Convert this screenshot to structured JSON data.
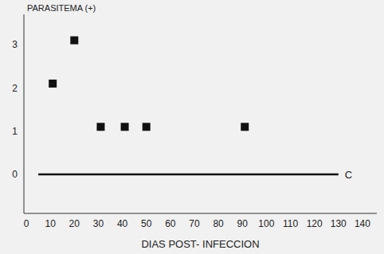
{
  "chart_data": {
    "type": "scatter",
    "x_label": "DIAS POST- INFECCION",
    "y_label": "PARASITEMA (+)",
    "xlim": [
      -1,
      146
    ],
    "ylim": [
      -0.9,
      3.7
    ],
    "xticks": [
      0,
      10,
      20,
      30,
      40,
      50,
      60,
      70,
      80,
      90,
      100,
      110,
      120,
      130,
      140
    ],
    "yticks": [
      0,
      1,
      2,
      3
    ],
    "grid": false,
    "series": [
      {
        "type": "scatter",
        "marker": "square",
        "color": "#111111",
        "x": [
          11,
          20,
          31,
          41,
          50,
          91
        ],
        "values": [
          2.1,
          3.1,
          1.1,
          1.1,
          1.1,
          1.1
        ]
      },
      {
        "name": "C",
        "type": "line",
        "line_style": "solid",
        "color": "#111111",
        "x": [
          5,
          130
        ],
        "values": [
          0,
          0
        ]
      }
    ]
  }
}
